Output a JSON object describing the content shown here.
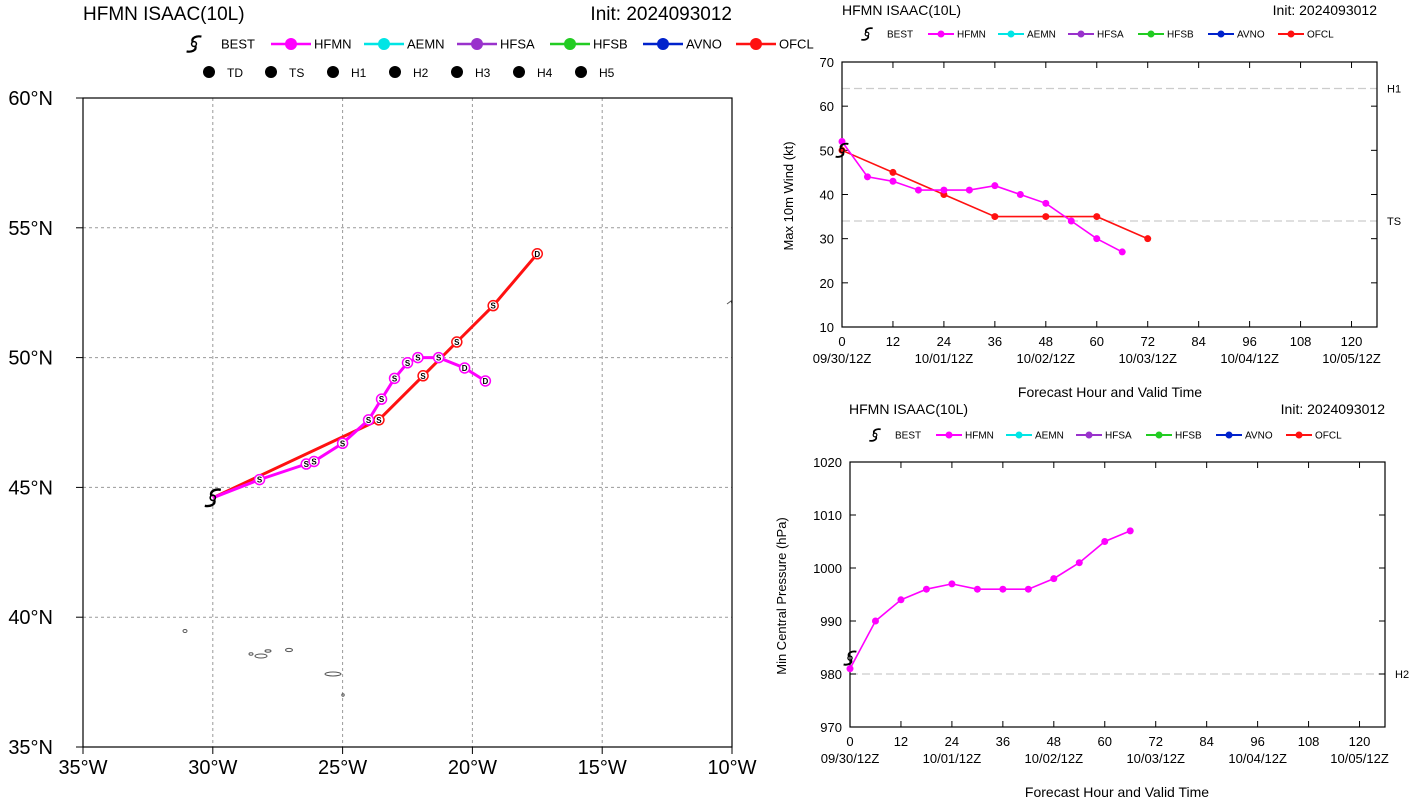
{
  "colors": {
    "BEST": "#000000",
    "HFMN": "#ff00ff",
    "AEMN": "#00e5e5",
    "HFSA": "#9932cc",
    "HFSB": "#22cc22",
    "AVNO": "#0022cc",
    "OFCL": "#ff1111",
    "grid": "#9a9a9a",
    "land": "#555555",
    "threshold": "#cccccc"
  },
  "legend": [
    {
      "key": "BEST",
      "label": "BEST",
      "icon": "hurricane-symbol-icon"
    },
    {
      "key": "HFMN",
      "label": "HFMN"
    },
    {
      "key": "AEMN",
      "label": "AEMN"
    },
    {
      "key": "HFSA",
      "label": "HFSA"
    },
    {
      "key": "HFSB",
      "label": "HFSB"
    },
    {
      "key": "AVNO",
      "label": "AVNO"
    },
    {
      "key": "OFCL",
      "label": "OFCL"
    }
  ],
  "intensity_legend": [
    {
      "glyph": "D",
      "label": "TD"
    },
    {
      "glyph": "S",
      "label": "TS"
    },
    {
      "glyph": "1",
      "label": "H1"
    },
    {
      "glyph": "2",
      "label": "H2"
    },
    {
      "glyph": "3",
      "label": "H3"
    },
    {
      "glyph": "4",
      "label": "H4"
    },
    {
      "glyph": "5",
      "label": "H5"
    }
  ],
  "chart_data": [
    {
      "type": "scatter",
      "name": "track-map",
      "title": "HFMN ISAAC(10L)",
      "title_right": "Init: 2024093012",
      "xlim": [
        -35,
        -10
      ],
      "ylim": [
        35,
        60
      ],
      "x_ticks": [
        -35,
        -30,
        -25,
        -20,
        -15,
        -10
      ],
      "x_tick_labels": [
        "35°W",
        "30°W",
        "25°W",
        "20°W",
        "15°W",
        "10°W"
      ],
      "y_ticks": [
        35,
        40,
        45,
        50,
        55,
        60
      ],
      "y_tick_labels": [
        "35°N",
        "40°N",
        "45°N",
        "50°N",
        "55°N",
        "60°N"
      ],
      "grid": true,
      "best_position": {
        "lon": -30.0,
        "lat": 44.6
      },
      "series": [
        {
          "name": "HFMN",
          "points": [
            {
              "lon": -30.0,
              "lat": 44.6,
              "cls": "S"
            },
            {
              "lon": -28.2,
              "lat": 45.3,
              "cls": "S"
            },
            {
              "lon": -26.4,
              "lat": 45.9,
              "cls": "S"
            },
            {
              "lon": -26.1,
              "lat": 46.0,
              "cls": "S"
            },
            {
              "lon": -25.0,
              "lat": 46.7,
              "cls": "S"
            },
            {
              "lon": -24.0,
              "lat": 47.6,
              "cls": "S"
            },
            {
              "lon": -23.5,
              "lat": 48.4,
              "cls": "S"
            },
            {
              "lon": -23.0,
              "lat": 49.2,
              "cls": "S"
            },
            {
              "lon": -22.5,
              "lat": 49.8,
              "cls": "S"
            },
            {
              "lon": -22.1,
              "lat": 50.0,
              "cls": "S"
            },
            {
              "lon": -21.3,
              "lat": 50.0,
              "cls": "S"
            },
            {
              "lon": -20.3,
              "lat": 49.6,
              "cls": "D"
            },
            {
              "lon": -19.5,
              "lat": 49.1,
              "cls": "D"
            }
          ]
        },
        {
          "name": "OFCL",
          "points": [
            {
              "lon": -30.0,
              "lat": 44.6,
              "cls": "S"
            },
            {
              "lon": -23.6,
              "lat": 47.6,
              "cls": "S"
            },
            {
              "lon": -21.9,
              "lat": 49.3,
              "cls": "S"
            },
            {
              "lon": -20.6,
              "lat": 50.6,
              "cls": "S"
            },
            {
              "lon": -19.2,
              "lat": 52.0,
              "cls": "S"
            },
            {
              "lon": -17.5,
              "lat": 54.0,
              "cls": "D"
            }
          ]
        }
      ]
    },
    {
      "type": "line",
      "name": "wind-chart",
      "title": "HFMN ISAAC(10L)",
      "title_right": "Init: 2024093012",
      "xlabel": "Forecast Hour and Valid Time",
      "ylabel": "Max 10m Wind (kt)",
      "xlim": [
        0,
        126
      ],
      "ylim": [
        10,
        70
      ],
      "x_ticks": [
        0,
        12,
        24,
        36,
        48,
        60,
        72,
        84,
        96,
        108,
        120
      ],
      "y_ticks": [
        10,
        20,
        30,
        40,
        50,
        60,
        70
      ],
      "date_labels": [
        {
          "x": 0,
          "label": "09/30/12Z"
        },
        {
          "x": 24,
          "label": "10/01/12Z"
        },
        {
          "x": 48,
          "label": "10/02/12Z"
        },
        {
          "x": 72,
          "label": "10/03/12Z"
        },
        {
          "x": 96,
          "label": "10/04/12Z"
        },
        {
          "x": 120,
          "label": "10/05/12Z"
        }
      ],
      "thresholds": [
        {
          "y": 64,
          "label": "H1"
        },
        {
          "y": 34,
          "label": "TS"
        }
      ],
      "best": {
        "x": 0,
        "y": 50
      },
      "series": [
        {
          "name": "HFMN",
          "x": [
            0,
            6,
            12,
            18,
            24,
            30,
            36,
            42,
            48,
            54,
            60,
            66
          ],
          "values": [
            52,
            44,
            43,
            41,
            41,
            41,
            42,
            40,
            38,
            34,
            30,
            27
          ]
        },
        {
          "name": "OFCL",
          "x": [
            0,
            12,
            24,
            36,
            48,
            60,
            72
          ],
          "values": [
            50,
            45,
            40,
            35,
            35,
            35,
            30
          ]
        }
      ]
    },
    {
      "type": "line",
      "name": "pressure-chart",
      "title": "HFMN ISAAC(10L)",
      "title_right": "Init: 2024093012",
      "xlabel": "Forecast Hour and Valid Time",
      "ylabel": "Min Central Pressure (hPa)",
      "xlim": [
        0,
        126
      ],
      "ylim": [
        970,
        1020
      ],
      "x_ticks": [
        0,
        12,
        24,
        36,
        48,
        60,
        72,
        84,
        96,
        108,
        120
      ],
      "y_ticks": [
        970,
        980,
        990,
        1000,
        1010,
        1020
      ],
      "date_labels": [
        {
          "x": 0,
          "label": "09/30/12Z"
        },
        {
          "x": 24,
          "label": "10/01/12Z"
        },
        {
          "x": 48,
          "label": "10/02/12Z"
        },
        {
          "x": 72,
          "label": "10/03/12Z"
        },
        {
          "x": 96,
          "label": "10/04/12Z"
        },
        {
          "x": 120,
          "label": "10/05/12Z"
        }
      ],
      "thresholds": [
        {
          "y": 980,
          "label": "H2"
        }
      ],
      "best": {
        "x": 0,
        "y": 983
      },
      "series": [
        {
          "name": "HFMN",
          "x": [
            0,
            6,
            12,
            18,
            24,
            30,
            36,
            42,
            48,
            54,
            60,
            66
          ],
          "values": [
            981,
            990,
            994,
            996,
            997,
            996,
            996,
            996,
            998,
            1001,
            1005,
            1007
          ]
        }
      ]
    }
  ]
}
